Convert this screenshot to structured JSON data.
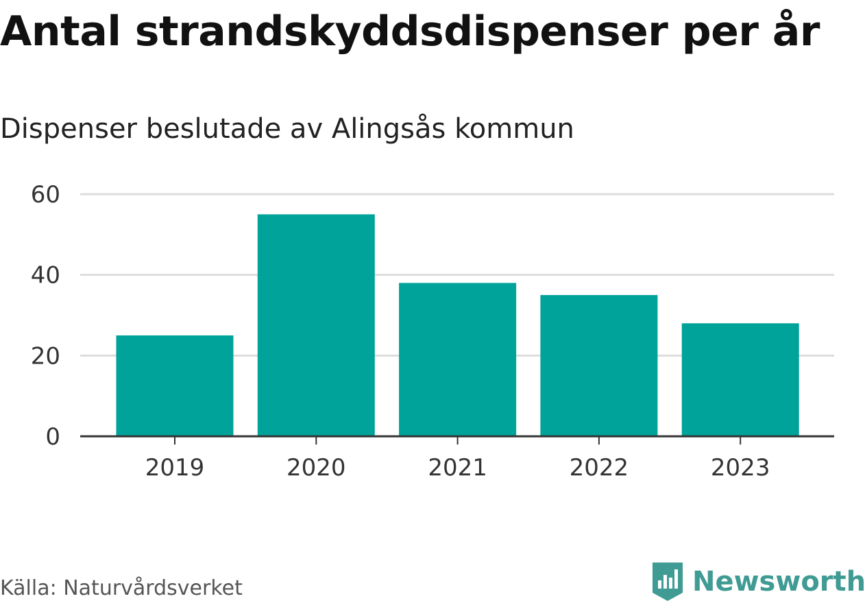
{
  "title": "Antal strandskyddsdispenser per år",
  "subtitle": "Dispenser beslutade av Alingsås kommun",
  "source": "Källa: Naturvårdsverket",
  "brand": {
    "name": "Newsworthy",
    "icon": "newsworthy-logo-icon",
    "color": "#3f9b93"
  },
  "chart_data": {
    "type": "bar",
    "categories": [
      "2019",
      "2020",
      "2021",
      "2022",
      "2023"
    ],
    "values": [
      25,
      55,
      38,
      35,
      28
    ],
    "ylim": [
      0,
      60
    ],
    "yticks": [
      0,
      20,
      40,
      60
    ],
    "grid": true,
    "bar_color": "#00a39a",
    "legend": "none"
  }
}
